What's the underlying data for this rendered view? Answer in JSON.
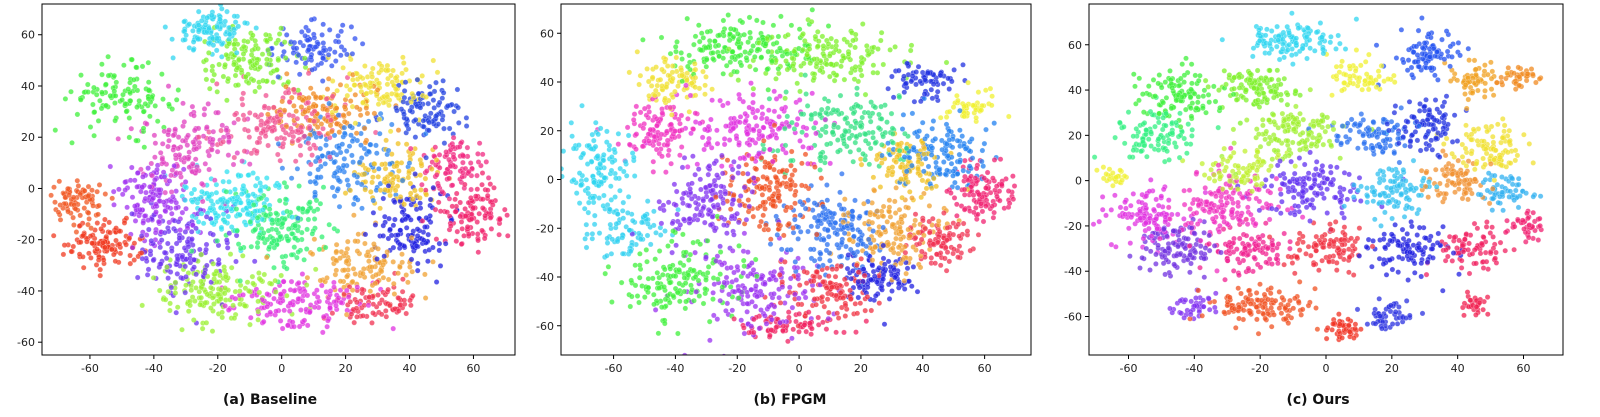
{
  "figure": {
    "description_id": "tsne-comparison"
  },
  "chart_data": [
    {
      "type": "scatter",
      "title": "",
      "caption": "(a)  Baseline",
      "xlabel": "",
      "ylabel": "",
      "xlim": [
        -75,
        73
      ],
      "ylim": [
        -65,
        72
      ],
      "xticks": [
        -60,
        -40,
        -20,
        0,
        20,
        40,
        60
      ],
      "yticks": [
        -60,
        -40,
        -20,
        0,
        20,
        40,
        60
      ],
      "grid": false,
      "clusters": [
        {
          "cx": -22,
          "cy": 62,
          "sx": 6,
          "sy": 4,
          "n": 110,
          "color": "#2fd5f0"
        },
        {
          "cx": -50,
          "cy": 35,
          "sx": 8,
          "sy": 6,
          "n": 120,
          "color": "#3ef03a"
        },
        {
          "cx": -10,
          "cy": 50,
          "sx": 8,
          "sy": 6,
          "n": 130,
          "color": "#7ef02a"
        },
        {
          "cx": 10,
          "cy": 55,
          "sx": 6,
          "sy": 5,
          "n": 90,
          "color": "#3050f0"
        },
        {
          "cx": 30,
          "cy": 40,
          "sx": 8,
          "sy": 6,
          "n": 110,
          "color": "#f0e030"
        },
        {
          "cx": 45,
          "cy": 30,
          "sx": 6,
          "sy": 6,
          "n": 100,
          "color": "#2040e0"
        },
        {
          "cx": 55,
          "cy": 10,
          "sx": 5,
          "sy": 6,
          "n": 90,
          "color": "#f02880"
        },
        {
          "cx": 60,
          "cy": -10,
          "sx": 5,
          "sy": 6,
          "n": 110,
          "color": "#f0206a"
        },
        {
          "cx": -63,
          "cy": -5,
          "sx": 4,
          "sy": 5,
          "n": 80,
          "color": "#f05520"
        },
        {
          "cx": -55,
          "cy": -22,
          "sx": 6,
          "sy": 4,
          "n": 120,
          "color": "#f03a20"
        },
        {
          "cx": -40,
          "cy": -5,
          "sx": 6,
          "sy": 8,
          "n": 140,
          "color": "#a030f0"
        },
        {
          "cx": -15,
          "cy": -5,
          "sx": 8,
          "sy": 6,
          "n": 160,
          "color": "#30e0f0"
        },
        {
          "cx": 0,
          "cy": -15,
          "sx": 9,
          "sy": 8,
          "n": 160,
          "color": "#30f070"
        },
        {
          "cx": 20,
          "cy": 10,
          "sx": 8,
          "sy": 8,
          "n": 140,
          "color": "#2a80f0"
        },
        {
          "cx": 40,
          "cy": -15,
          "sx": 6,
          "sy": 8,
          "n": 120,
          "color": "#2020e0"
        },
        {
          "cx": 25,
          "cy": -30,
          "sx": 8,
          "sy": 6,
          "n": 120,
          "color": "#f0a030"
        },
        {
          "cx": -20,
          "cy": -40,
          "sx": 10,
          "sy": 6,
          "n": 160,
          "color": "#9af030"
        },
        {
          "cx": 5,
          "cy": -45,
          "sx": 10,
          "sy": 5,
          "n": 140,
          "color": "#e030e0"
        },
        {
          "cx": 30,
          "cy": -45,
          "sx": 6,
          "sy": 4,
          "n": 80,
          "color": "#f03050"
        },
        {
          "cx": -30,
          "cy": 15,
          "sx": 8,
          "sy": 8,
          "n": 140,
          "color": "#e040c0"
        },
        {
          "cx": 0,
          "cy": 25,
          "sx": 10,
          "sy": 8,
          "n": 160,
          "color": "#f05090"
        },
        {
          "cx": 15,
          "cy": 30,
          "sx": 8,
          "sy": 6,
          "n": 120,
          "color": "#f08a20"
        },
        {
          "cx": -30,
          "cy": -25,
          "sx": 8,
          "sy": 8,
          "n": 140,
          "color": "#6a30f0"
        },
        {
          "cx": 35,
          "cy": 5,
          "sx": 6,
          "sy": 6,
          "n": 100,
          "color": "#f0c020"
        }
      ]
    },
    {
      "type": "scatter",
      "title": "",
      "caption": "(b)  FPGM",
      "xlabel": "",
      "ylabel": "",
      "xlim": [
        -77,
        75
      ],
      "ylim": [
        -72,
        72
      ],
      "xticks": [
        -60,
        -40,
        -20,
        0,
        20,
        40,
        60
      ],
      "yticks": [
        -60,
        -40,
        -20,
        0,
        20,
        40,
        60
      ],
      "grid": false,
      "clusters": [
        {
          "cx": -65,
          "cy": 5,
          "sx": 5,
          "sy": 8,
          "n": 120,
          "color": "#2fd5f0"
        },
        {
          "cx": -20,
          "cy": 55,
          "sx": 12,
          "sy": 6,
          "n": 170,
          "color": "#3ef03a"
        },
        {
          "cx": 10,
          "cy": 50,
          "sx": 12,
          "sy": 6,
          "n": 160,
          "color": "#7ef02a"
        },
        {
          "cx": -40,
          "cy": 40,
          "sx": 6,
          "sy": 6,
          "n": 90,
          "color": "#f0e030"
        },
        {
          "cx": 40,
          "cy": 40,
          "sx": 5,
          "sy": 4,
          "n": 70,
          "color": "#2030e0"
        },
        {
          "cx": 55,
          "cy": 30,
          "sx": 4,
          "sy": 3,
          "n": 50,
          "color": "#f0f030"
        },
        {
          "cx": -45,
          "cy": 20,
          "sx": 6,
          "sy": 6,
          "n": 110,
          "color": "#f030c0"
        },
        {
          "cx": -15,
          "cy": 20,
          "sx": 10,
          "sy": 8,
          "n": 160,
          "color": "#e030e0"
        },
        {
          "cx": 15,
          "cy": 20,
          "sx": 10,
          "sy": 8,
          "n": 160,
          "color": "#30e080"
        },
        {
          "cx": 45,
          "cy": 10,
          "sx": 8,
          "sy": 8,
          "n": 130,
          "color": "#2080f0"
        },
        {
          "cx": 60,
          "cy": -5,
          "sx": 5,
          "sy": 6,
          "n": 110,
          "color": "#f02070"
        },
        {
          "cx": -30,
          "cy": -10,
          "sx": 8,
          "sy": 8,
          "n": 150,
          "color": "#8030f0"
        },
        {
          "cx": -10,
          "cy": -5,
          "sx": 8,
          "sy": 8,
          "n": 160,
          "color": "#f05020"
        },
        {
          "cx": 10,
          "cy": -20,
          "sx": 8,
          "sy": 8,
          "n": 160,
          "color": "#2a70f0"
        },
        {
          "cx": 30,
          "cy": -20,
          "sx": 8,
          "sy": 8,
          "n": 140,
          "color": "#f0a030"
        },
        {
          "cx": 45,
          "cy": -25,
          "sx": 5,
          "sy": 6,
          "n": 100,
          "color": "#f03050"
        },
        {
          "cx": -40,
          "cy": -40,
          "sx": 10,
          "sy": 8,
          "n": 160,
          "color": "#3ef03a"
        },
        {
          "cx": -15,
          "cy": -45,
          "sx": 10,
          "sy": 8,
          "n": 160,
          "color": "#9a30f0"
        },
        {
          "cx": 10,
          "cy": -45,
          "sx": 8,
          "sy": 6,
          "n": 120,
          "color": "#f03040"
        },
        {
          "cx": 25,
          "cy": -40,
          "sx": 6,
          "sy": 6,
          "n": 100,
          "color": "#2020e0"
        },
        {
          "cx": -55,
          "cy": -20,
          "sx": 6,
          "sy": 6,
          "n": 90,
          "color": "#30d0f0"
        },
        {
          "cx": -5,
          "cy": -60,
          "sx": 8,
          "sy": 3,
          "n": 70,
          "color": "#f02060"
        },
        {
          "cx": 35,
          "cy": 5,
          "sx": 6,
          "sy": 6,
          "n": 90,
          "color": "#f0c020"
        }
      ]
    },
    {
      "type": "scatter",
      "title": "",
      "caption": "(c)  Ours",
      "xlabel": "",
      "ylabel": "",
      "xlim": [
        -72,
        72
      ],
      "ylim": [
        -77,
        78
      ],
      "xticks": [
        -60,
        -40,
        -20,
        0,
        20,
        40,
        60
      ],
      "yticks": [
        -60,
        -40,
        -20,
        0,
        20,
        40,
        60
      ],
      "grid": false,
      "clusters": [
        {
          "cx": -10,
          "cy": 62,
          "sx": 8,
          "sy": 4,
          "n": 120,
          "color": "#2fd5f0"
        },
        {
          "cx": -45,
          "cy": 38,
          "sx": 6,
          "sy": 6,
          "n": 110,
          "color": "#3ef03a"
        },
        {
          "cx": -20,
          "cy": 40,
          "sx": 6,
          "sy": 5,
          "n": 110,
          "color": "#7ef02a"
        },
        {
          "cx": 10,
          "cy": 45,
          "sx": 5,
          "sy": 4,
          "n": 60,
          "color": "#f0f030"
        },
        {
          "cx": 30,
          "cy": 55,
          "sx": 5,
          "sy": 6,
          "n": 90,
          "color": "#2050f0"
        },
        {
          "cx": 45,
          "cy": 45,
          "sx": 4,
          "sy": 4,
          "n": 60,
          "color": "#f0a020"
        },
        {
          "cx": 58,
          "cy": 45,
          "sx": 3,
          "sy": 3,
          "n": 40,
          "color": "#f08a20"
        },
        {
          "cx": -50,
          "cy": 20,
          "sx": 6,
          "sy": 5,
          "n": 100,
          "color": "#30f080"
        },
        {
          "cx": -10,
          "cy": 20,
          "sx": 8,
          "sy": 6,
          "n": 130,
          "color": "#a0f030"
        },
        {
          "cx": 15,
          "cy": 20,
          "sx": 6,
          "sy": 5,
          "n": 90,
          "color": "#2a70f0"
        },
        {
          "cx": 30,
          "cy": 25,
          "sx": 5,
          "sy": 6,
          "n": 90,
          "color": "#2030e0"
        },
        {
          "cx": 50,
          "cy": 15,
          "sx": 6,
          "sy": 6,
          "n": 100,
          "color": "#f0e030"
        },
        {
          "cx": -65,
          "cy": 2,
          "sx": 2,
          "sy": 2,
          "n": 25,
          "color": "#f0f030"
        },
        {
          "cx": -55,
          "cy": -15,
          "sx": 6,
          "sy": 6,
          "n": 110,
          "color": "#e030e0"
        },
        {
          "cx": -30,
          "cy": -10,
          "sx": 8,
          "sy": 8,
          "n": 150,
          "color": "#f030c0"
        },
        {
          "cx": -5,
          "cy": -5,
          "sx": 8,
          "sy": 6,
          "n": 130,
          "color": "#6030f0"
        },
        {
          "cx": 20,
          "cy": -5,
          "sx": 6,
          "sy": 6,
          "n": 100,
          "color": "#30c0f0"
        },
        {
          "cx": 40,
          "cy": 0,
          "sx": 5,
          "sy": 5,
          "n": 80,
          "color": "#f09030"
        },
        {
          "cx": 55,
          "cy": -5,
          "sx": 4,
          "sy": 4,
          "n": 60,
          "color": "#30b0f0"
        },
        {
          "cx": -45,
          "cy": -30,
          "sx": 6,
          "sy": 6,
          "n": 110,
          "color": "#7030e0"
        },
        {
          "cx": -25,
          "cy": -30,
          "sx": 6,
          "sy": 5,
          "n": 100,
          "color": "#f02090"
        },
        {
          "cx": 0,
          "cy": -30,
          "sx": 6,
          "sy": 5,
          "n": 100,
          "color": "#f03040"
        },
        {
          "cx": 25,
          "cy": -30,
          "sx": 6,
          "sy": 5,
          "n": 100,
          "color": "#2020e0"
        },
        {
          "cx": 45,
          "cy": -30,
          "sx": 5,
          "sy": 5,
          "n": 80,
          "color": "#f02060"
        },
        {
          "cx": 60,
          "cy": -20,
          "sx": 3,
          "sy": 3,
          "n": 40,
          "color": "#f02070"
        },
        {
          "cx": -20,
          "cy": -55,
          "sx": 8,
          "sy": 4,
          "n": 120,
          "color": "#f05020"
        },
        {
          "cx": 5,
          "cy": -65,
          "sx": 3,
          "sy": 3,
          "n": 40,
          "color": "#f03020"
        },
        {
          "cx": 20,
          "cy": -60,
          "sx": 4,
          "sy": 3,
          "n": 50,
          "color": "#2a30e0"
        },
        {
          "cx": -40,
          "cy": -55,
          "sx": 3,
          "sy": 3,
          "n": 40,
          "color": "#8030f0"
        },
        {
          "cx": 45,
          "cy": -55,
          "sx": 3,
          "sy": 3,
          "n": 30,
          "color": "#f02050"
        },
        {
          "cx": -25,
          "cy": 5,
          "sx": 6,
          "sy": 5,
          "n": 80,
          "color": "#c0f030"
        }
      ]
    }
  ]
}
